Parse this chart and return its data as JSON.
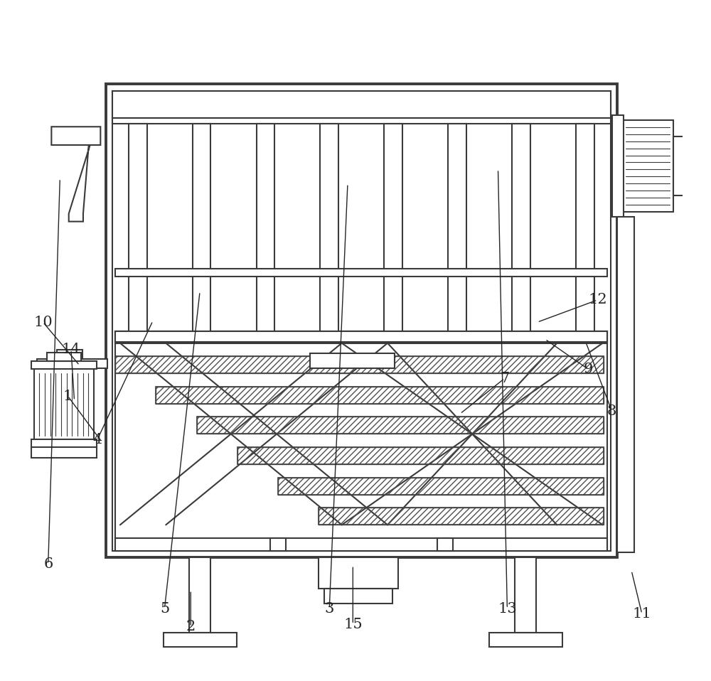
{
  "bg_color": "#ffffff",
  "lc": "#3a3a3a",
  "lw": 1.5,
  "tlw": 2.8,
  "fig_w": 10.0,
  "fig_h": 9.58,
  "dpi": 100,
  "label_fs": 15,
  "labels": {
    "1": [
      0.06,
      0.415,
      0.112,
      0.345
    ],
    "2": [
      0.248,
      0.062,
      0.248,
      0.118
    ],
    "3": [
      0.46,
      0.09,
      0.488,
      0.74
    ],
    "4": [
      0.105,
      0.348,
      0.19,
      0.53
    ],
    "5": [
      0.208,
      0.09,
      0.262,
      0.575
    ],
    "6": [
      0.03,
      0.158,
      0.048,
      0.748
    ],
    "7": [
      0.728,
      0.442,
      0.66,
      0.388
    ],
    "8": [
      0.892,
      0.392,
      0.852,
      0.498
    ],
    "9": [
      0.856,
      0.456,
      0.79,
      0.502
    ],
    "10": [
      0.022,
      0.528,
      0.078,
      0.462
    ],
    "11": [
      0.938,
      0.082,
      0.922,
      0.148
    ],
    "12": [
      0.87,
      0.562,
      0.778,
      0.528
    ],
    "13": [
      0.732,
      0.09,
      0.718,
      0.762
    ],
    "14": [
      0.065,
      0.486,
      0.07,
      0.408
    ],
    "15": [
      0.496,
      0.066,
      0.496,
      0.156
    ]
  }
}
